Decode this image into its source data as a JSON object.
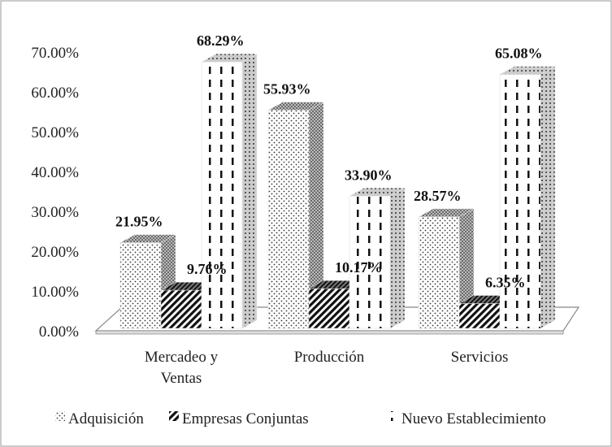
{
  "chart_data": {
    "type": "bar",
    "title": "",
    "xlabel": "",
    "ylabel": "",
    "ylim": [
      0,
      0.7
    ],
    "y_ticks": [
      "0.00%",
      "10.00%",
      "20.00%",
      "30.00%",
      "40.00%",
      "50.00%",
      "60.00%",
      "70.00%"
    ],
    "categories": [
      [
        "Mercadeo y",
        "Ventas"
      ],
      [
        "Producción"
      ],
      [
        "Servicios"
      ]
    ],
    "series": [
      {
        "name": "Adquisición",
        "pattern": "dots",
        "values": [
          0.2195,
          0.5593,
          0.2857
        ],
        "labels": [
          "21.95%",
          "55.93%",
          "28.57%"
        ]
      },
      {
        "name": "Empresas Conjuntas",
        "pattern": "diagonal-stripes",
        "values": [
          0.0976,
          0.1017,
          0.0635
        ],
        "labels": [
          "9.76%",
          "10.17%",
          "6.35%"
        ]
      },
      {
        "name": "Nuevo Establecimiento",
        "pattern": "vertical-dashes",
        "values": [
          0.6829,
          0.339,
          0.6508
        ],
        "labels": [
          "68.29%",
          "33.90%",
          "65.08%"
        ]
      }
    ],
    "legend_position": "bottom",
    "grid": false,
    "style": "3d-column"
  }
}
